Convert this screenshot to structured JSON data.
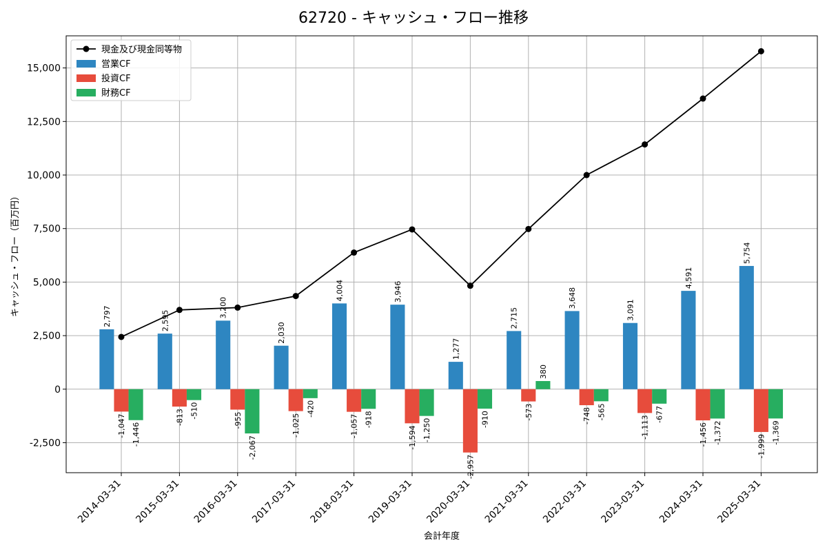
{
  "chart_data": {
    "type": "bar",
    "title": "62720 - キャッシュ・フロー推移",
    "xlabel": "会計年度",
    "ylabel": "キャッシュ・フロー（百万円）",
    "ylim": [
      -3900,
      16500
    ],
    "yticks": [
      -2500,
      0,
      2500,
      5000,
      7500,
      10000,
      12500,
      15000
    ],
    "ytick_labels": [
      "-2,500",
      "0",
      "2,500",
      "5,000",
      "7,500",
      "10,000",
      "12,500",
      "15,000"
    ],
    "grid": true,
    "legend_position": "top-left",
    "categories": [
      "2014-03-31",
      "2015-03-31",
      "2016-03-31",
      "2017-03-31",
      "2018-03-31",
      "2019-03-31",
      "2020-03-31",
      "2021-03-31",
      "2022-03-31",
      "2023-03-31",
      "2024-03-31",
      "2025-03-31"
    ],
    "series": [
      {
        "name": "営業CF",
        "kind": "bar",
        "color": "#2e86c1",
        "values": [
          2797,
          2595,
          3200,
          2030,
          4004,
          3946,
          1277,
          2715,
          3648,
          3091,
          4591,
          5754
        ],
        "labels": [
          "2,797",
          "2,595",
          "3,200",
          "2,030",
          "4,004",
          "3,946",
          "1,277",
          "2,715",
          "3,648",
          "3,091",
          "4,591",
          "5,754"
        ]
      },
      {
        "name": "投資CF",
        "kind": "bar",
        "color": "#e74c3c",
        "values": [
          -1047,
          -813,
          -955,
          -1025,
          -1057,
          -1594,
          -2957,
          -573,
          -748,
          -1113,
          -1456,
          -1999
        ],
        "labels": [
          "-1,047",
          "-813",
          "-955",
          "-1,025",
          "-1,057",
          "-1,594",
          "-2,957",
          "-573",
          "-748",
          "-1,113",
          "-1,456",
          "-1,999"
        ]
      },
      {
        "name": "財務CF",
        "kind": "bar",
        "color": "#27ae60",
        "values": [
          -1446,
          -510,
          -2067,
          -420,
          -918,
          -1250,
          -910,
          380,
          -565,
          -677,
          -1372,
          -1369
        ],
        "labels": [
          "-1,446",
          "-510",
          "-2,067",
          "-420",
          "-918",
          "-1,250",
          "-910",
          "380",
          "-565",
          "-677",
          "-1,372",
          "-1,369"
        ]
      },
      {
        "name": "現金及び現金同等物",
        "kind": "line",
        "color": "#000000",
        "values": [
          2440,
          3700,
          3810,
          4350,
          6380,
          7460,
          4830,
          7480,
          10000,
          11430,
          13570,
          15780
        ]
      }
    ]
  }
}
